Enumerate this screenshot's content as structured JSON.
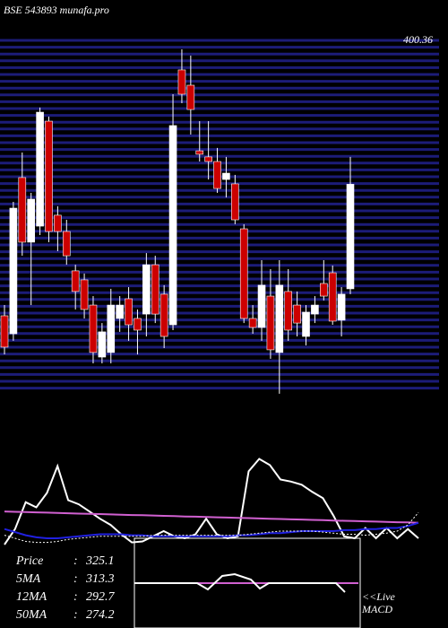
{
  "chart_data": [
    {
      "type": "candlestick",
      "title": "BSE 543893 munafa.pro",
      "ylim": [
        215,
        400.36
      ],
      "yticks": [
        400.36
      ],
      "series": {
        "open": [
          256.3,
          246.9,
          328.6,
          294.8,
          303.2,
          358.1,
          308.9,
          300.4,
          279.8,
          275.1,
          261.9,
          234.7,
          237.1,
          254.9,
          265.2,
          254.9,
          257.2,
          283.0,
          267.6,
          251.6,
          384.9,
          376.9,
          342.6,
          339.4,
          337.0,
          327.6,
          325.3,
          301.8,
          254.9,
          250.2,
          266.6,
          237.1,
          269.0,
          261.9,
          245.5,
          257.2,
          273.2,
          278.8,
          254.0,
          270.4
        ],
        "high": [
          261.9,
          315.9,
          341.7,
          320.6,
          365.2,
          360.5,
          313.6,
          306.5,
          283.0,
          278.4,
          266.6,
          252.5,
          270.4,
          266.6,
          271.3,
          259.6,
          289.1,
          287.7,
          272.3,
          372.2,
          395.7,
          392.4,
          358.1,
          358.1,
          344.1,
          339.4,
          330.0,
          304.2,
          261.9,
          285.4,
          280.7,
          285.4,
          280.7,
          269.0,
          261.9,
          266.6,
          285.4,
          282.6,
          271.3,
          339.4
        ],
        "low": [
          236.1,
          243.2,
          287.7,
          261.9,
          298.5,
          294.8,
          290.1,
          283.0,
          259.6,
          254.9,
          231.4,
          231.4,
          231.4,
          247.9,
          243.2,
          236.1,
          245.5,
          252.5,
          239.4,
          248.8,
          367.5,
          351.1,
          337.0,
          327.6,
          320.6,
          318.2,
          304.2,
          252.5,
          246.9,
          243.2,
          233.8,
          215.5,
          243.2,
          245.5,
          240.8,
          252.5,
          264.3,
          251.6,
          245.5,
          267.6
        ],
        "close": [
          239.9,
          312.6,
          294.8,
          317.3,
          362.8,
          300.4,
          300.4,
          287.7,
          269.0,
          259.6,
          237.1,
          247.9,
          261.9,
          261.9,
          251.6,
          248.8,
          283.0,
          257.2,
          245.5,
          355.8,
          372.2,
          364.2,
          340.8,
          337.0,
          322.9,
          330.9,
          306.5,
          254.9,
          250.2,
          272.3,
          238.5,
          272.3,
          248.8,
          252.5,
          258.2,
          261.9,
          266.6,
          253.5,
          267.6,
          325.1
        ]
      },
      "up_color": "#ffffff",
      "down_color": "#cc0000",
      "grid_color": "#1c1c78",
      "stats": [
        {
          "label": "Price",
          "value": 325.1
        },
        {
          "label": "5MA",
          "value": 313.3
        },
        {
          "label": "12MA",
          "value": 292.7
        },
        {
          "label": "50MA",
          "value": 274.2
        }
      ]
    },
    {
      "type": "line",
      "ylim": [
        0,
        100
      ],
      "note_lines": [
        "<<Live",
        "MACD"
      ],
      "series": [
        {
          "color": "#ffffff",
          "style": "solid",
          "values": [
            7,
            22,
            48,
            43,
            57,
            83,
            50,
            46,
            39,
            32,
            26,
            17,
            9,
            10,
            15,
            20,
            15,
            13,
            17,
            32,
            17,
            13,
            15,
            78,
            90,
            84,
            70,
            68,
            65,
            58,
            52,
            35,
            15,
            13,
            23,
            13,
            23,
            13,
            22,
            13
          ]
        },
        {
          "color": "#d060d0",
          "style": "solid",
          "values": [
            39,
            38.7,
            38.4,
            38.2,
            37.9,
            37.6,
            37.3,
            37,
            36.8,
            36.5,
            36.2,
            35.9,
            35.6,
            35.4,
            35.1,
            34.8,
            34.5,
            34.2,
            34,
            33.7,
            33.4,
            33.1,
            32.8,
            32.6,
            32.3,
            32,
            31.7,
            31.4,
            31.2,
            30.9,
            30.6,
            30.3,
            30,
            29.8,
            29.5,
            29.2,
            28.9,
            28.6,
            28.4,
            28.1
          ]
        },
        {
          "color": "#2020e0",
          "style": "solid",
          "values": [
            22,
            19,
            16,
            14,
            13,
            13,
            14,
            15,
            16,
            17,
            17,
            17,
            16,
            16,
            15,
            15,
            15,
            15,
            15,
            15,
            15,
            15,
            16,
            16,
            17,
            18,
            18,
            19,
            20,
            20,
            20,
            20,
            21,
            21,
            22,
            22,
            23,
            23,
            25,
            28
          ]
        },
        {
          "color": "#ffffff",
          "style": "dotted",
          "values": [
            16,
            13,
            10,
            9,
            9,
            10,
            12,
            13,
            14,
            15,
            15,
            15,
            15,
            15,
            16,
            16,
            16,
            16,
            16,
            16,
            16,
            16,
            16,
            17,
            18,
            19,
            20,
            20,
            20,
            20,
            19,
            18,
            17,
            17,
            16,
            17,
            18,
            20,
            26,
            38
          ]
        }
      ]
    }
  ]
}
